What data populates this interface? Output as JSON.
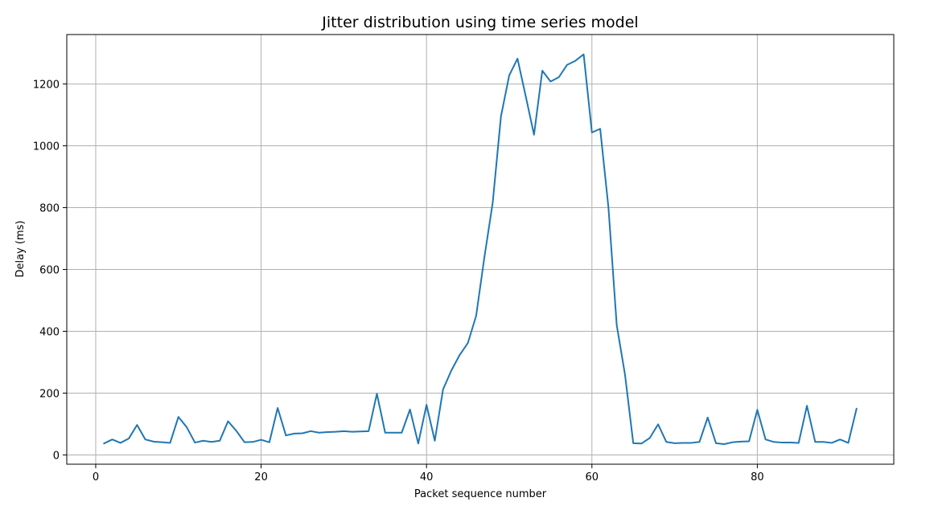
{
  "chart_data": {
    "type": "line",
    "title": "Jitter distribution using time series model",
    "xlabel": "Packet sequence number",
    "ylabel": "Delay (ms)",
    "xlim": [
      -3.5,
      96.5
    ],
    "ylim": [
      -30,
      1360
    ],
    "xticks": [
      0,
      20,
      40,
      60,
      80
    ],
    "yticks": [
      0,
      200,
      400,
      600,
      800,
      1000,
      1200
    ],
    "grid": true,
    "series": [
      {
        "color": "#1f77b4",
        "x": [
          1,
          2,
          3,
          4,
          5,
          6,
          7,
          8,
          9,
          10,
          11,
          12,
          13,
          14,
          15,
          16,
          17,
          18,
          19,
          20,
          21,
          22,
          23,
          24,
          25,
          26,
          27,
          28,
          29,
          30,
          31,
          32,
          33,
          34,
          35,
          36,
          37,
          38,
          39,
          40,
          41,
          42,
          43,
          44,
          45,
          46,
          47,
          48,
          49,
          50,
          51,
          52,
          53,
          54,
          55,
          56,
          57,
          58,
          59,
          60,
          61,
          62,
          63,
          64,
          65,
          66,
          67,
          68,
          69,
          70,
          71,
          72,
          73,
          74,
          75,
          76,
          77,
          78,
          79,
          80,
          81,
          82,
          83,
          84,
          85,
          86,
          87,
          88,
          89,
          90,
          91,
          92
        ],
        "y": [
          37,
          50,
          39,
          53,
          97,
          50,
          43,
          41,
          39,
          123,
          90,
          40,
          46,
          42,
          46,
          109,
          78,
          41,
          42,
          49,
          41,
          152,
          63,
          69,
          70,
          77,
          72,
          74,
          75,
          77,
          75,
          76,
          77,
          198,
          72,
          72,
          72,
          147,
          37,
          162,
          46,
          212,
          273,
          323,
          362,
          450,
          640,
          815,
          1095,
          1228,
          1282,
          1160,
          1036,
          1243,
          1208,
          1222,
          1262,
          1275,
          1296,
          1043,
          1055,
          800,
          420,
          260,
          38,
          37,
          55,
          99,
          42,
          38,
          39,
          39,
          42,
          121,
          38,
          35,
          41,
          43,
          44,
          146,
          50,
          42,
          40,
          40,
          39,
          159,
          42,
          42,
          39,
          50,
          39,
          150
        ]
      }
    ]
  }
}
